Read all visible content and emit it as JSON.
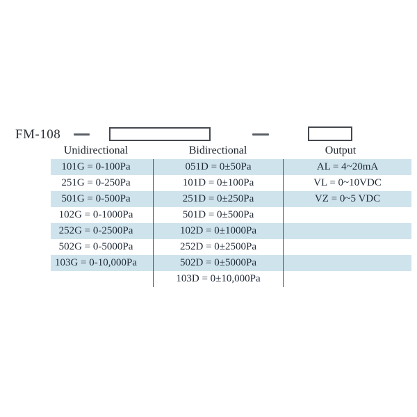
{
  "model": {
    "label": "FM-108"
  },
  "diagram": {
    "range_code_box": "blank model-code box (pressure range)",
    "output_code_box": "blank model-code box (output)"
  },
  "table": {
    "headers": [
      "Unidirectional",
      "Bidirectional",
      "Output"
    ],
    "rows": [
      [
        "101G = 0-100Pa",
        "051D = 0±50Pa",
        "AL = 4~20mA"
      ],
      [
        "251G = 0-250Pa",
        "101D = 0±100Pa",
        "VL = 0~10VDC"
      ],
      [
        "501G = 0-500Pa",
        "251D = 0±250Pa",
        "VZ = 0~5 VDC"
      ],
      [
        "102G = 0-1000Pa",
        "501D = 0±500Pa",
        ""
      ],
      [
        "252G = 0-2500Pa",
        "102D = 0±1000Pa",
        ""
      ],
      [
        "502G = 0-5000Pa",
        "252D = 0±2500Pa",
        ""
      ],
      [
        "103G = 0-10,000Pa",
        "502D = 0±5000Pa",
        ""
      ],
      [
        "",
        "103D = 0±10,000Pa",
        ""
      ]
    ]
  },
  "colors": {
    "stripe_blue": "#cfe3ed",
    "text": "#212b38",
    "divider": "#47525e",
    "box_border": "#44484e",
    "background": "#ffffff"
  }
}
